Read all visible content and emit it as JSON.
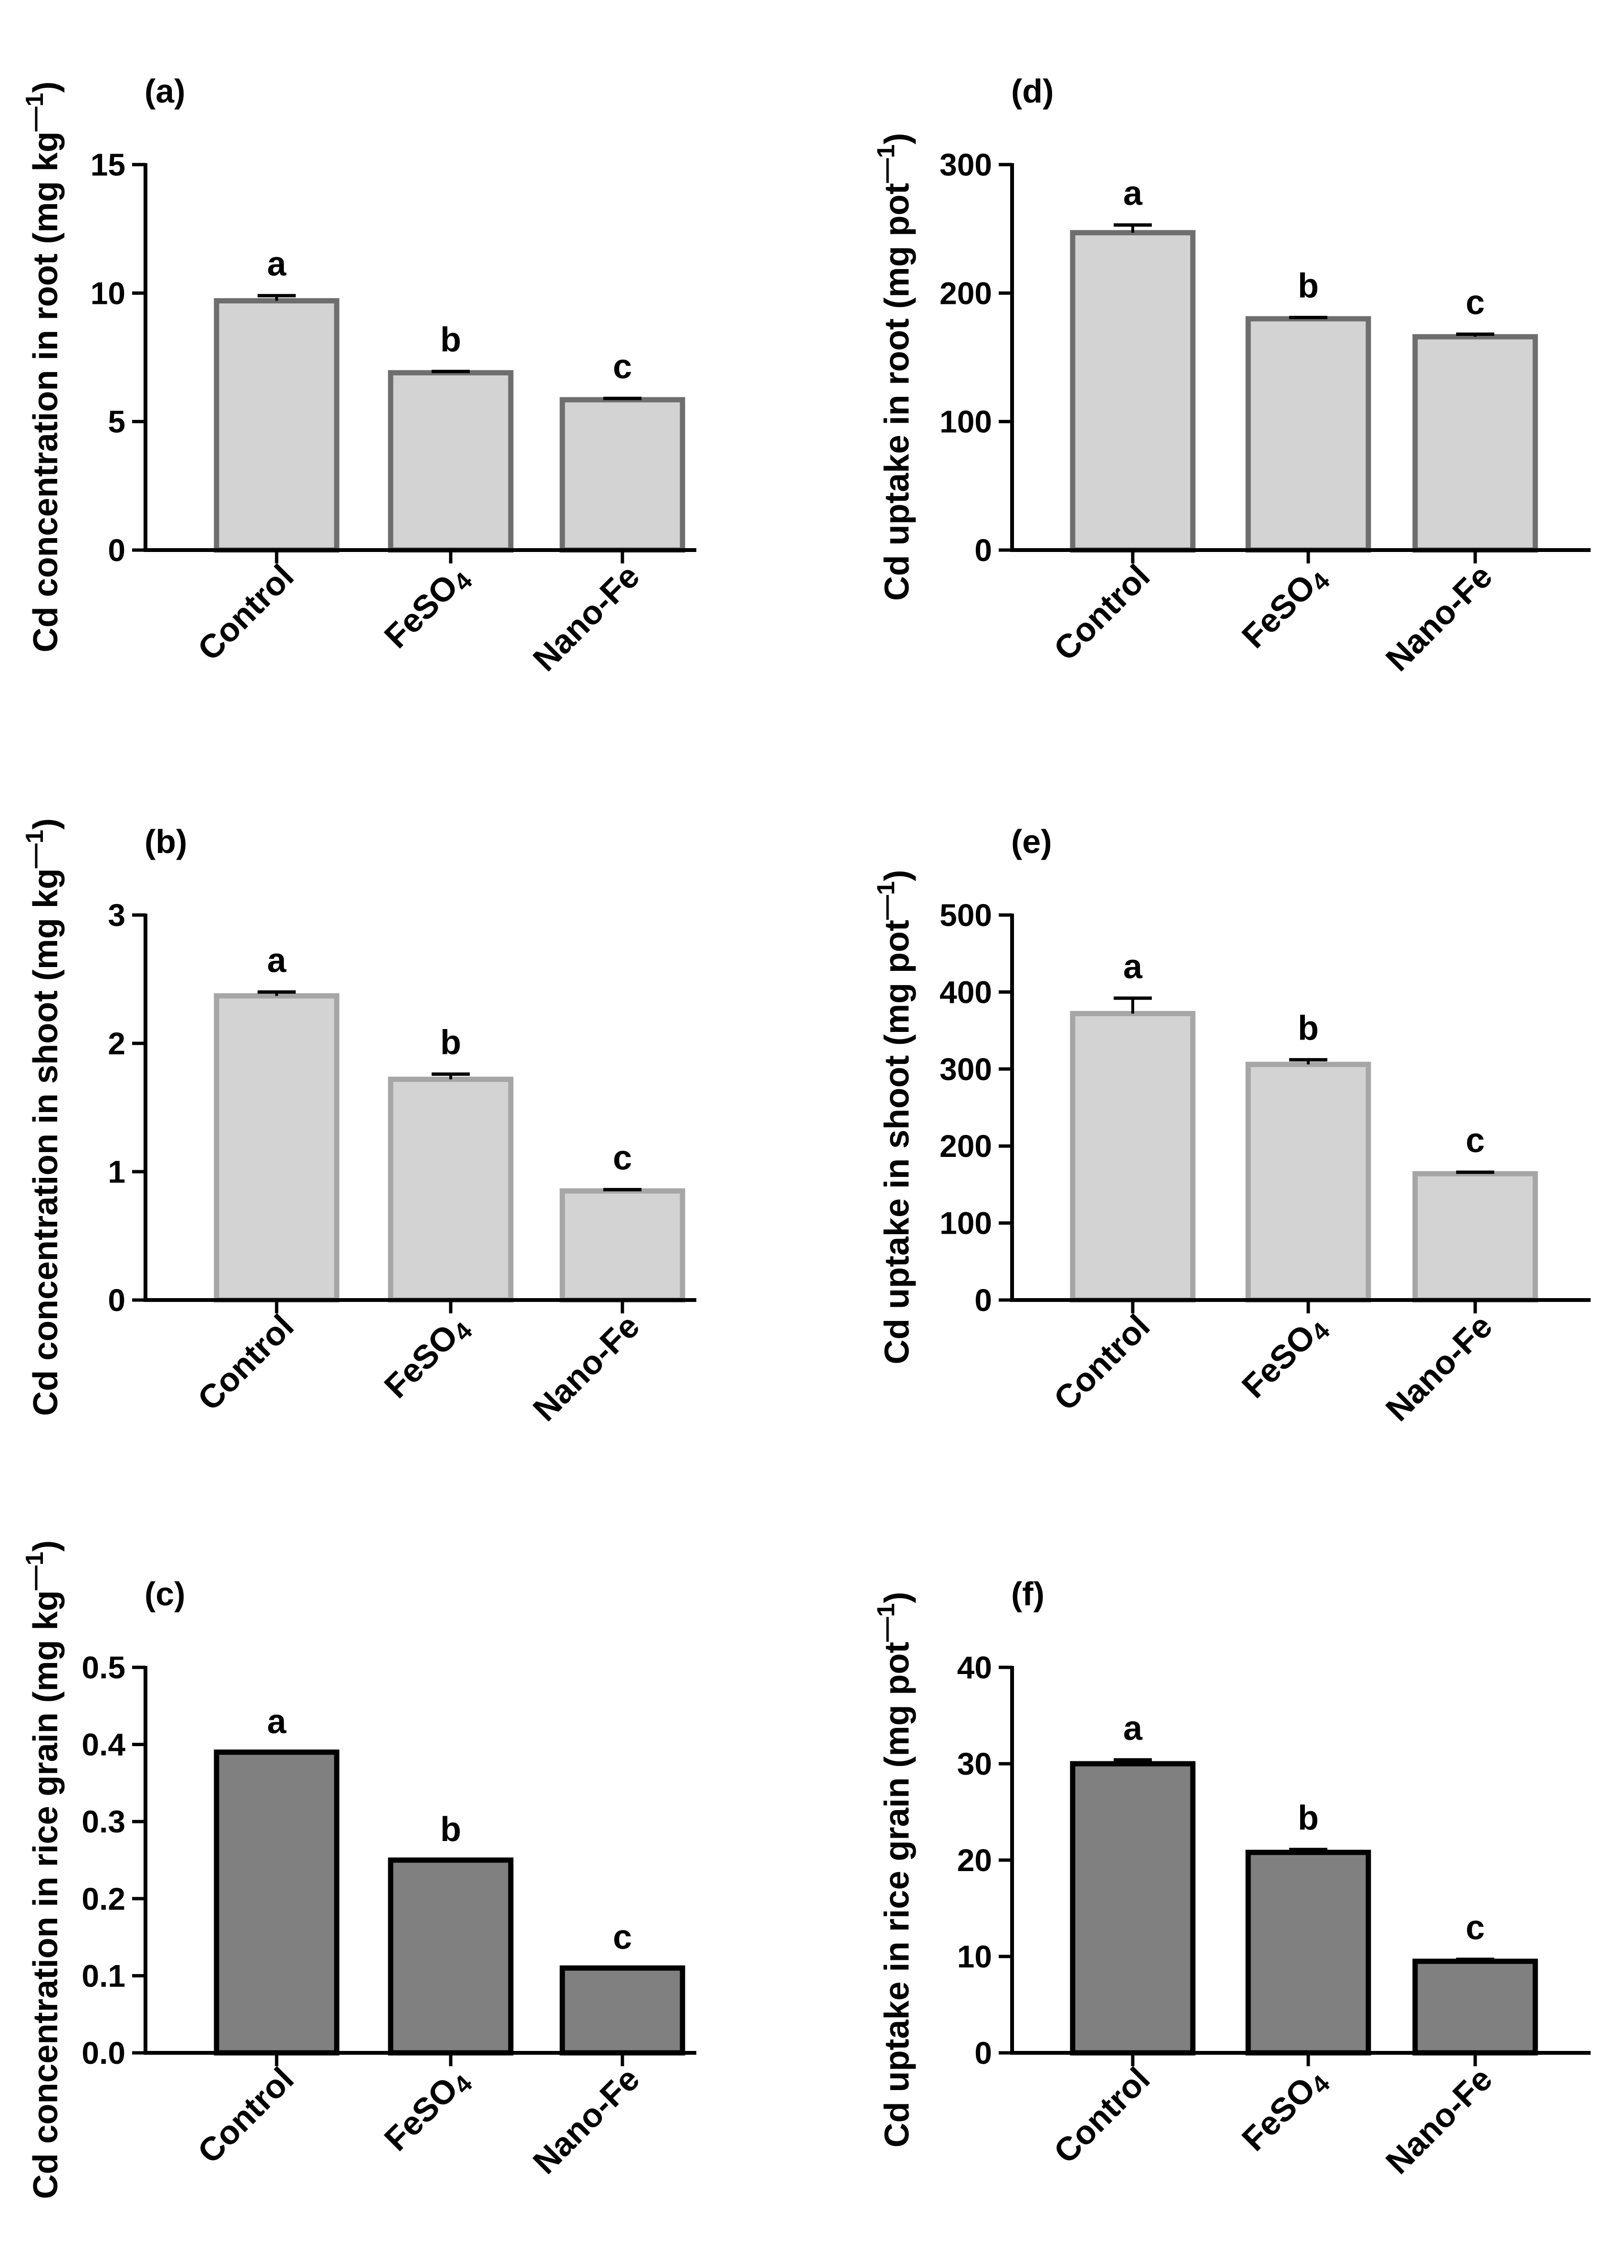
{
  "figure": {
    "background": "#ffffff",
    "sub_suffix": "4"
  },
  "chart_data": [
    {
      "type": "bar",
      "panel": "(a)",
      "ylabel": "Cd concentration in root (mg kg",
      "ylabel_sup": "—1",
      "ylabel_close": ")",
      "categories": [
        "Control",
        "FeSO4",
        "Nano-Fe"
      ],
      "values": [
        9.7,
        6.9,
        5.85
      ],
      "errors": [
        0.2,
        0.05,
        0.05
      ],
      "letters": [
        "a",
        "b",
        "c"
      ],
      "ylim": [
        0,
        15
      ],
      "yticks": [
        0,
        5,
        10,
        15
      ],
      "bar_fill": "#d3d3d3",
      "bar_stroke": "#6e6e6e"
    },
    {
      "type": "bar",
      "panel": "(b)",
      "ylabel": "Cd concentration in shoot (mg kg",
      "ylabel_sup": "—1",
      "ylabel_close": ")",
      "categories": [
        "Control",
        "FeSO4",
        "Nano-Fe"
      ],
      "values": [
        2.37,
        1.72,
        0.85
      ],
      "errors": [
        0.03,
        0.04,
        0.01
      ],
      "letters": [
        "a",
        "b",
        "c"
      ],
      "ylim": [
        0,
        3
      ],
      "yticks": [
        0,
        1,
        2,
        3
      ],
      "bar_fill": "#d3d3d3",
      "bar_stroke": "#a6a6a6"
    },
    {
      "type": "bar",
      "panel": "(c)",
      "ylabel": "Cd concentration in rice grain (mg kg",
      "ylabel_sup": "—1",
      "ylabel_close": ")",
      "categories": [
        "Control",
        "FeSO4",
        "Nano-Fe"
      ],
      "values": [
        0.39,
        0.25,
        0.11
      ],
      "errors": [
        0,
        0,
        0
      ],
      "letters": [
        "a",
        "b",
        "c"
      ],
      "ylim": [
        0,
        0.5
      ],
      "yticks": [
        0.0,
        0.1,
        0.2,
        0.3,
        0.4,
        0.5
      ],
      "ytick_labels": [
        "0.0",
        "0.1",
        "0.2",
        "0.3",
        "0.4",
        "0.5"
      ],
      "bar_fill": "#808080",
      "bar_stroke": "#000000"
    },
    {
      "type": "bar",
      "panel": "(d)",
      "ylabel": "Cd uptake in root (mg pot",
      "ylabel_sup": "—1",
      "ylabel_close": ")",
      "categories": [
        "Control",
        "FeSO4",
        "Nano-Fe"
      ],
      "values": [
        247,
        180,
        166
      ],
      "errors": [
        6,
        1,
        2
      ],
      "letters": [
        "a",
        "b",
        "c"
      ],
      "ylim": [
        0,
        300
      ],
      "yticks": [
        0,
        100,
        200,
        300
      ],
      "bar_fill": "#d3d3d3",
      "bar_stroke": "#6e6e6e"
    },
    {
      "type": "bar",
      "panel": "(e)",
      "ylabel": "Cd uptake in shoot (mg pot",
      "ylabel_sup": "—1",
      "ylabel_close": ")",
      "categories": [
        "Control",
        "FeSO4",
        "Nano-Fe"
      ],
      "values": [
        372,
        306,
        164
      ],
      "errors": [
        20,
        6,
        2
      ],
      "letters": [
        "a",
        "b",
        "c"
      ],
      "ylim": [
        0,
        500
      ],
      "yticks": [
        0,
        100,
        200,
        300,
        400,
        500
      ],
      "bar_fill": "#d3d3d3",
      "bar_stroke": "#a6a6a6"
    },
    {
      "type": "bar",
      "panel": "(f)",
      "ylabel": "Cd uptake in rice grain (mg pot",
      "ylabel_sup": "—1",
      "ylabel_close": ")",
      "categories": [
        "Control",
        "FeSO4",
        "Nano-Fe"
      ],
      "values": [
        30.0,
        20.8,
        9.5
      ],
      "errors": [
        0.4,
        0.3,
        0.2
      ],
      "letters": [
        "a",
        "b",
        "c"
      ],
      "ylim": [
        0,
        40
      ],
      "yticks": [
        0,
        10,
        20,
        30,
        40
      ],
      "bar_fill": "#808080",
      "bar_stroke": "#000000"
    }
  ]
}
